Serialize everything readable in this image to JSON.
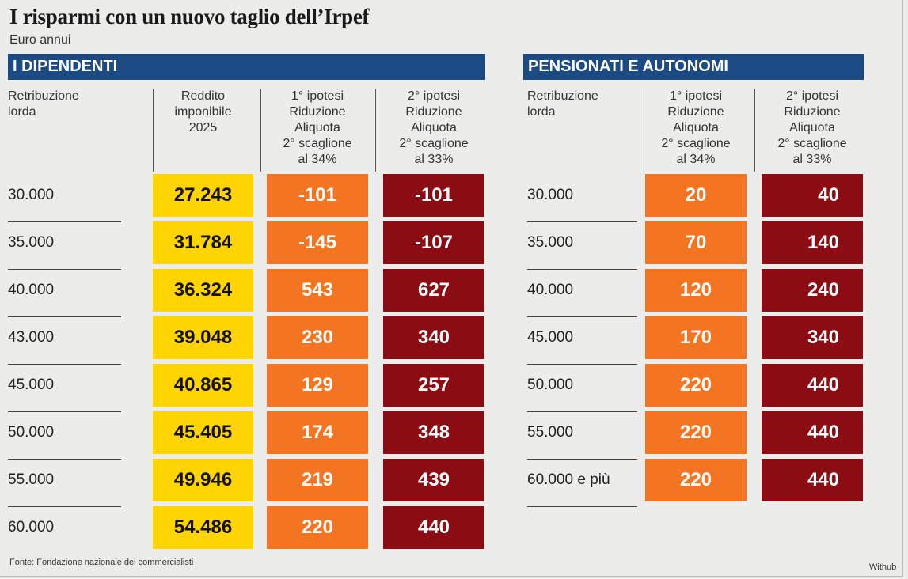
{
  "title": "I risparmi con un nuovo taglio dell’Irpef",
  "subtitle": "Euro annui",
  "source": "Fonte: Fondazione nazionale dei commercialisti",
  "brand": "Withub",
  "colors": {
    "band": "#1b4a85",
    "yellow": "#ffd400",
    "orange": "#f47521",
    "dark_red": "#8b0c12"
  },
  "chart_data": [
    {
      "type": "table",
      "title": "I DIPENDENTI",
      "columns": [
        [
          "Retribuzione",
          "lorda"
        ],
        [
          "Reddito",
          "imponibile",
          "2025"
        ],
        [
          "1° ipotesi",
          "Riduzione",
          "Aliquota",
          "2° scaglione",
          "al 34%"
        ],
        [
          "2° ipotesi",
          "Riduzione",
          "Aliquota",
          "2° scaglione",
          "al 33%"
        ]
      ],
      "rows": [
        [
          "30.000",
          "27.243",
          "-101",
          "-101"
        ],
        [
          "35.000",
          "31.784",
          "-145",
          "-107"
        ],
        [
          "40.000",
          "36.324",
          "543",
          "627"
        ],
        [
          "43.000",
          "39.048",
          "230",
          "340"
        ],
        [
          "45.000",
          "40.865",
          "129",
          "257"
        ],
        [
          "50.000",
          "45.405",
          "174",
          "348"
        ],
        [
          "55.000",
          "49.946",
          "219",
          "439"
        ],
        [
          "60.000",
          "54.486",
          "220",
          "440"
        ]
      ]
    },
    {
      "type": "table",
      "title": "PENSIONATI E AUTONOMI",
      "columns": [
        [
          "Retribuzione",
          "lorda"
        ],
        [
          "1° ipotesi",
          "Riduzione",
          "Aliquota",
          "2° scaglione",
          "al 34%"
        ],
        [
          "2° ipotesi",
          "Riduzione",
          "Aliquota",
          "2° scaglione",
          "al 33%"
        ]
      ],
      "rows": [
        [
          "30.000",
          "20",
          "40"
        ],
        [
          "35.000",
          "70",
          "140"
        ],
        [
          "40.000",
          "120",
          "240"
        ],
        [
          "45.000",
          "170",
          "340"
        ],
        [
          "50.000",
          "220",
          "440"
        ],
        [
          "55.000",
          "220",
          "440"
        ],
        [
          "60.000 e più",
          "220",
          "440"
        ]
      ]
    }
  ]
}
